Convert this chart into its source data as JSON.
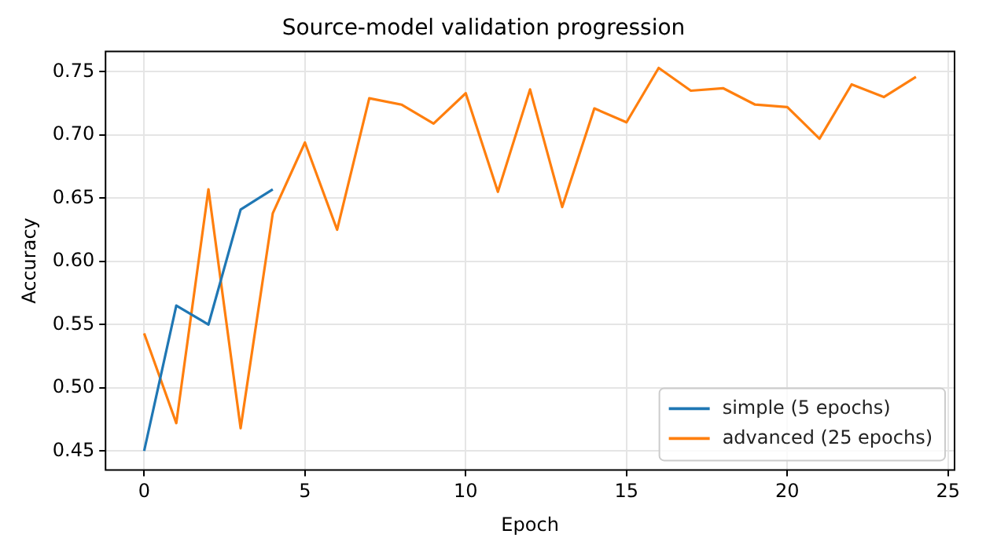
{
  "chart_data": {
    "type": "line",
    "title": "Source-model validation progression",
    "xlabel": "Epoch",
    "ylabel": "Accuracy",
    "xlim": [
      -1.2,
      25.2
    ],
    "xticks": [
      0,
      5,
      10,
      15,
      20,
      25
    ],
    "ylim": [
      0.435,
      0.766
    ],
    "yticks": [
      0.45,
      {
        "value": 0.5,
        "label": "0.50"
      },
      0.55,
      {
        "value": 0.6,
        "label": "0.60"
      },
      0.65,
      {
        "value": 0.7,
        "label": "0.70"
      },
      0.75
    ],
    "grid": true,
    "legend": "bottom right",
    "marker": "none",
    "line_style": "solid",
    "series": [
      {
        "name": "simple (5 epochs)",
        "color": "#1f77b4",
        "x": [
          0,
          1,
          2,
          3,
          4
        ],
        "values": [
          0.45,
          0.565,
          0.55,
          0.641,
          0.657
        ]
      },
      {
        "name": "advanced (25 epochs)",
        "color": "#ff7f0e",
        "x": [
          0,
          1,
          2,
          3,
          4,
          5,
          6,
          7,
          8,
          9,
          10,
          11,
          12,
          13,
          14,
          15,
          16,
          17,
          18,
          19,
          20,
          21,
          22,
          23,
          24
        ],
        "values": [
          0.543,
          0.472,
          0.657,
          0.468,
          0.638,
          0.694,
          0.625,
          0.729,
          0.724,
          0.709,
          0.733,
          0.655,
          0.736,
          0.643,
          0.721,
          0.71,
          0.753,
          0.735,
          0.737,
          0.724,
          0.722,
          0.697,
          0.74,
          0.73,
          0.746
        ]
      }
    ]
  }
}
